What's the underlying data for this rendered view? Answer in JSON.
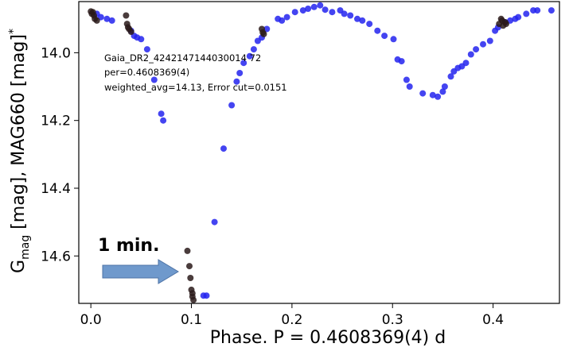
{
  "chart_data": {
    "type": "scatter",
    "xlabel": "Phase. P = 0.4608369(4) d",
    "ylabel_parts": {
      "main": "G",
      "sub": "mag",
      "rest": " [mag], MAG660 [mag]",
      "sup": "*"
    },
    "xlim": [
      -0.012,
      0.466
    ],
    "ylim": [
      14.74,
      13.849
    ],
    "y_inverted": true,
    "xticks": [
      0.0,
      0.1,
      0.2,
      0.3,
      0.4
    ],
    "xtick_labels": [
      "0.0",
      "0.1",
      "0.2",
      "0.3",
      "0.4"
    ],
    "yticks": [
      14.0,
      14.2,
      14.4,
      14.6
    ],
    "ytick_labels": [
      "14.0",
      "14.2",
      "14.4",
      "14.6"
    ],
    "grid": false,
    "annotations": {
      "line1": "Gaia_DR2_4242147144030014 72",
      "line2": "per=0.4608369(4)",
      "line3": "weighted_avg=14.13, Error cut=0.0151",
      "arrow_label": "1 min."
    },
    "series": [
      {
        "color": "#2323ee",
        "points": [
          [
            0.006,
            13.885
          ],
          [
            0.01,
            13.895
          ],
          [
            0.016,
            13.9
          ],
          [
            0.021,
            13.905
          ],
          [
            0.04,
            13.935
          ],
          [
            0.043,
            13.95
          ],
          [
            0.046,
            13.955
          ],
          [
            0.05,
            13.96
          ],
          [
            0.056,
            13.99
          ],
          [
            0.063,
            14.08
          ],
          [
            0.07,
            14.18
          ],
          [
            0.072,
            14.2
          ],
          [
            0.112,
            14.717
          ],
          [
            0.115,
            14.717
          ],
          [
            0.123,
            14.5
          ],
          [
            0.132,
            14.283
          ],
          [
            0.14,
            14.155
          ],
          [
            0.145,
            14.085
          ],
          [
            0.148,
            14.06
          ],
          [
            0.152,
            14.03
          ],
          [
            0.158,
            14.01
          ],
          [
            0.162,
            13.99
          ],
          [
            0.166,
            13.965
          ],
          [
            0.17,
            13.955
          ],
          [
            0.175,
            13.93
          ],
          [
            0.186,
            13.9
          ],
          [
            0.19,
            13.905
          ],
          [
            0.195,
            13.895
          ],
          [
            0.203,
            13.88
          ],
          [
            0.211,
            13.875
          ],
          [
            0.216,
            13.87
          ],
          [
            0.222,
            13.865
          ],
          [
            0.228,
            13.86
          ],
          [
            0.233,
            13.873
          ],
          [
            0.24,
            13.88
          ],
          [
            0.248,
            13.875
          ],
          [
            0.252,
            13.885
          ],
          [
            0.258,
            13.89
          ],
          [
            0.265,
            13.9
          ],
          [
            0.27,
            13.905
          ],
          [
            0.277,
            13.915
          ],
          [
            0.285,
            13.935
          ],
          [
            0.292,
            13.95
          ],
          [
            0.301,
            13.96
          ],
          [
            0.305,
            14.02
          ],
          [
            0.309,
            14.025
          ],
          [
            0.314,
            14.08
          ],
          [
            0.317,
            14.1
          ],
          [
            0.33,
            14.12
          ],
          [
            0.34,
            14.125
          ],
          [
            0.345,
            14.13
          ],
          [
            0.35,
            14.115
          ],
          [
            0.352,
            14.1
          ],
          [
            0.358,
            14.07
          ],
          [
            0.361,
            14.055
          ],
          [
            0.365,
            14.045
          ],
          [
            0.369,
            14.04
          ],
          [
            0.373,
            14.03
          ],
          [
            0.378,
            14.005
          ],
          [
            0.383,
            13.99
          ],
          [
            0.39,
            13.975
          ],
          [
            0.397,
            13.965
          ],
          [
            0.402,
            13.935
          ],
          [
            0.405,
            13.925
          ],
          [
            0.412,
            13.91
          ],
          [
            0.417,
            13.905
          ],
          [
            0.422,
            13.9
          ],
          [
            0.425,
            13.895
          ],
          [
            0.433,
            13.885
          ],
          [
            0.44,
            13.875
          ],
          [
            0.444,
            13.875
          ],
          [
            0.458,
            13.875
          ]
        ]
      },
      {
        "color": "#2a1a1a",
        "points": [
          [
            0.0,
            13.878
          ],
          [
            0.001,
            13.885
          ],
          [
            0.002,
            13.88
          ],
          [
            0.003,
            13.89
          ],
          [
            0.004,
            13.9
          ],
          [
            0.006,
            13.905
          ],
          [
            0.035,
            13.89
          ],
          [
            0.036,
            13.915
          ],
          [
            0.037,
            13.925
          ],
          [
            0.038,
            13.93
          ],
          [
            0.04,
            13.938
          ],
          [
            0.096,
            14.585
          ],
          [
            0.098,
            14.63
          ],
          [
            0.099,
            14.665
          ],
          [
            0.1,
            14.7
          ],
          [
            0.101,
            14.71
          ],
          [
            0.101,
            14.72
          ],
          [
            0.102,
            14.73
          ],
          [
            0.17,
            13.93
          ],
          [
            0.171,
            13.94
          ],
          [
            0.172,
            13.945
          ],
          [
            0.406,
            13.915
          ],
          [
            0.408,
            13.9
          ],
          [
            0.409,
            13.905
          ],
          [
            0.41,
            13.92
          ],
          [
            0.412,
            13.91
          ],
          [
            0.413,
            13.915
          ]
        ]
      }
    ]
  }
}
